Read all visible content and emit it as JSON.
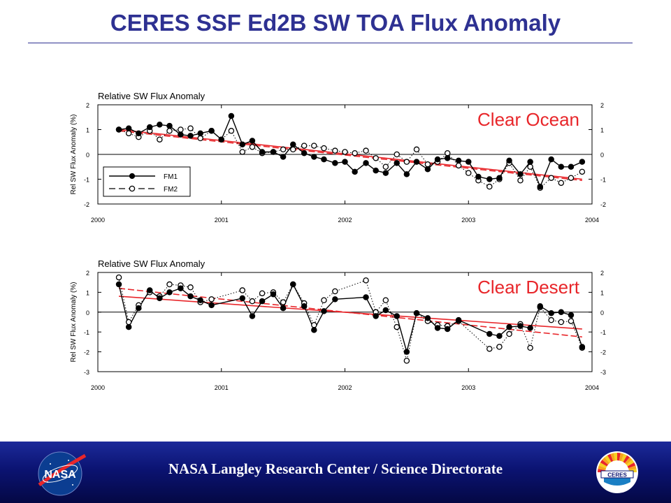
{
  "slide": {
    "title": "CERES SSF Ed2B SW TOA Flux Anomaly",
    "footer_text": "NASA Langley Research Center / Science Directorate",
    "nasa_logo_text": "NASA",
    "ceres_logo_text": "CERES"
  },
  "colors": {
    "title": "#2e3192",
    "label_red": "#e8262a",
    "trend_red": "#e8262a",
    "footer_blue": "#0b1372"
  },
  "chart_data": [
    {
      "type": "line",
      "title": "Relative SW Flux Anomaly",
      "region_label": "Clear Ocean",
      "ylabel": "Rel SW Flux Anomaly (%)",
      "xlabel": "",
      "xlim": [
        2000,
        2004
      ],
      "ylim": [
        -2,
        2
      ],
      "xticks": [
        "2000",
        "2001",
        "2002",
        "2003",
        "2004"
      ],
      "yticks": [
        "-2",
        "-1",
        "0",
        "1",
        "2"
      ],
      "grid": false,
      "legend": "bottom-left",
      "series": [
        {
          "name": "FM1",
          "x": [
            2000.17,
            2000.25,
            2000.33,
            2000.42,
            2000.5,
            2000.58,
            2000.67,
            2000.75,
            2000.83,
            2000.92,
            2001.0,
            2001.08,
            2001.17,
            2001.25,
            2001.33,
            2001.42,
            2001.5,
            2001.58,
            2001.67,
            2001.75,
            2001.83,
            2001.92,
            2002.0,
            2002.08,
            2002.17,
            2002.25,
            2002.33,
            2002.42,
            2002.5,
            2002.58,
            2002.67,
            2002.75,
            2002.83,
            2002.92,
            2003.0,
            2003.08,
            2003.17,
            2003.25,
            2003.33,
            2003.42,
            2003.5,
            2003.58,
            2003.67,
            2003.75,
            2003.83,
            2003.92
          ],
          "values": [
            1.0,
            1.05,
            0.85,
            1.1,
            1.2,
            1.15,
            0.8,
            0.75,
            0.85,
            0.95,
            0.6,
            1.55,
            0.4,
            0.55,
            0.1,
            0.1,
            -0.1,
            0.4,
            0.05,
            -0.1,
            -0.2,
            -0.35,
            -0.3,
            -0.7,
            -0.35,
            -0.65,
            -0.75,
            -0.35,
            -0.8,
            -0.3,
            -0.6,
            -0.2,
            -0.15,
            -0.25,
            -0.3,
            -0.9,
            -1.0,
            -0.95,
            -0.25,
            -0.8,
            -0.3,
            -1.3,
            -0.2,
            -0.5,
            -0.5,
            -0.3
          ]
        },
        {
          "name": "FM2",
          "x": [
            2000.17,
            2000.25,
            2000.33,
            2000.42,
            2000.5,
            2000.58,
            2000.67,
            2000.75,
            2000.83,
            2000.92,
            2001.0,
            2001.08,
            2001.17,
            2001.25,
            2001.33,
            2001.42,
            2001.5,
            2001.58,
            2001.67,
            2001.75,
            2001.83,
            2001.92,
            2002.0,
            2002.08,
            2002.17,
            2002.25,
            2002.33,
            2002.42,
            2002.5,
            2002.58,
            2002.67,
            2002.75,
            2002.83,
            2002.92,
            2003.0,
            2003.08,
            2003.17,
            2003.25,
            2003.33,
            2003.42,
            2003.5,
            2003.58,
            2003.67,
            2003.75,
            2003.83,
            2003.92
          ],
          "values": [
            1.0,
            0.85,
            0.7,
            0.95,
            0.6,
            0.95,
            1.0,
            1.05,
            0.65,
            0.95,
            0.6,
            0.95,
            0.1,
            0.3,
            0.05,
            0.1,
            0.2,
            0.2,
            0.35,
            0.35,
            0.25,
            0.15,
            0.1,
            0.05,
            0.15,
            -0.15,
            -0.5,
            0.0,
            -0.3,
            0.2,
            -0.4,
            -0.3,
            0.05,
            -0.45,
            -0.75,
            -1.05,
            -1.3,
            -1.0,
            -0.35,
            -1.05,
            -0.5,
            -1.35,
            -0.95,
            -1.15,
            -0.95,
            -0.7
          ]
        }
      ],
      "trends": [
        {
          "name": "FM1 trend",
          "x": [
            2000.17,
            2003.92
          ],
          "values": [
            1.0,
            -1.0
          ]
        },
        {
          "name": "FM2 trend",
          "x": [
            2000.17,
            2003.92
          ],
          "values": [
            0.95,
            -1.05
          ]
        }
      ]
    },
    {
      "type": "line",
      "title": "Relative SW Flux Anomaly",
      "region_label": "Clear Desert",
      "ylabel": "Rel SW Flux Anomaly (%)",
      "xlabel": "",
      "xlim": [
        2000,
        2004
      ],
      "ylim": [
        -3,
        2
      ],
      "xticks": [
        "2000",
        "2001",
        "2002",
        "2003",
        "2004"
      ],
      "yticks": [
        "-3",
        "-2",
        "-1",
        "0",
        "1",
        "2"
      ],
      "grid": false,
      "legend": "",
      "series": [
        {
          "name": "FM1",
          "x": [
            2000.17,
            2000.25,
            2000.33,
            2000.42,
            2000.5,
            2000.58,
            2000.67,
            2000.75,
            2000.83,
            2000.92,
            2001.17,
            2001.25,
            2001.33,
            2001.42,
            2001.5,
            2001.58,
            2001.67,
            2001.75,
            2001.83,
            2001.92,
            2002.17,
            2002.25,
            2002.33,
            2002.42,
            2002.5,
            2002.58,
            2002.67,
            2002.75,
            2002.83,
            2002.92,
            2003.17,
            2003.25,
            2003.33,
            2003.42,
            2003.5,
            2003.58,
            2003.67,
            2003.75,
            2003.83,
            2003.92
          ],
          "values": [
            1.4,
            -0.75,
            0.2,
            1.1,
            0.7,
            1.0,
            1.2,
            0.8,
            0.6,
            0.35,
            0.7,
            -0.2,
            0.55,
            0.9,
            0.2,
            1.4,
            0.3,
            -0.9,
            0.05,
            0.65,
            0.75,
            -0.2,
            0.1,
            -0.2,
            -2.0,
            -0.05,
            -0.3,
            -0.8,
            -0.85,
            -0.4,
            -1.1,
            -1.2,
            -0.75,
            -0.7,
            -0.8,
            0.3,
            -0.05,
            0.0,
            -0.15,
            -1.75
          ]
        },
        {
          "name": "FM2",
          "x": [
            2000.17,
            2000.25,
            2000.33,
            2000.42,
            2000.5,
            2000.58,
            2000.67,
            2000.75,
            2000.83,
            2000.92,
            2001.17,
            2001.25,
            2001.33,
            2001.42,
            2001.5,
            2001.58,
            2001.67,
            2001.75,
            2001.83,
            2001.92,
            2002.17,
            2002.25,
            2002.33,
            2002.42,
            2002.5,
            2002.58,
            2002.67,
            2002.75,
            2002.83,
            2002.92,
            2003.17,
            2003.25,
            2003.33,
            2003.42,
            2003.5,
            2003.58,
            2003.67,
            2003.75,
            2003.83,
            2003.92
          ],
          "values": [
            1.75,
            -0.5,
            0.35,
            1.0,
            0.8,
            1.4,
            1.35,
            1.25,
            0.5,
            0.65,
            1.1,
            0.55,
            0.95,
            1.0,
            0.5,
            1.4,
            0.45,
            -0.65,
            0.6,
            1.05,
            1.6,
            0.0,
            0.6,
            -0.75,
            -2.45,
            -0.05,
            -0.45,
            -0.65,
            -0.7,
            -0.45,
            -1.85,
            -1.75,
            -1.1,
            -0.6,
            -1.8,
            0.25,
            -0.4,
            -0.5,
            -0.45,
            -1.8
          ]
        }
      ],
      "trends": [
        {
          "name": "FM1 trend",
          "x": [
            2000.17,
            2003.92
          ],
          "values": [
            0.8,
            -0.85
          ]
        },
        {
          "name": "FM2 trend",
          "x": [
            2000.17,
            2003.92
          ],
          "values": [
            1.2,
            -1.25
          ]
        }
      ]
    }
  ]
}
